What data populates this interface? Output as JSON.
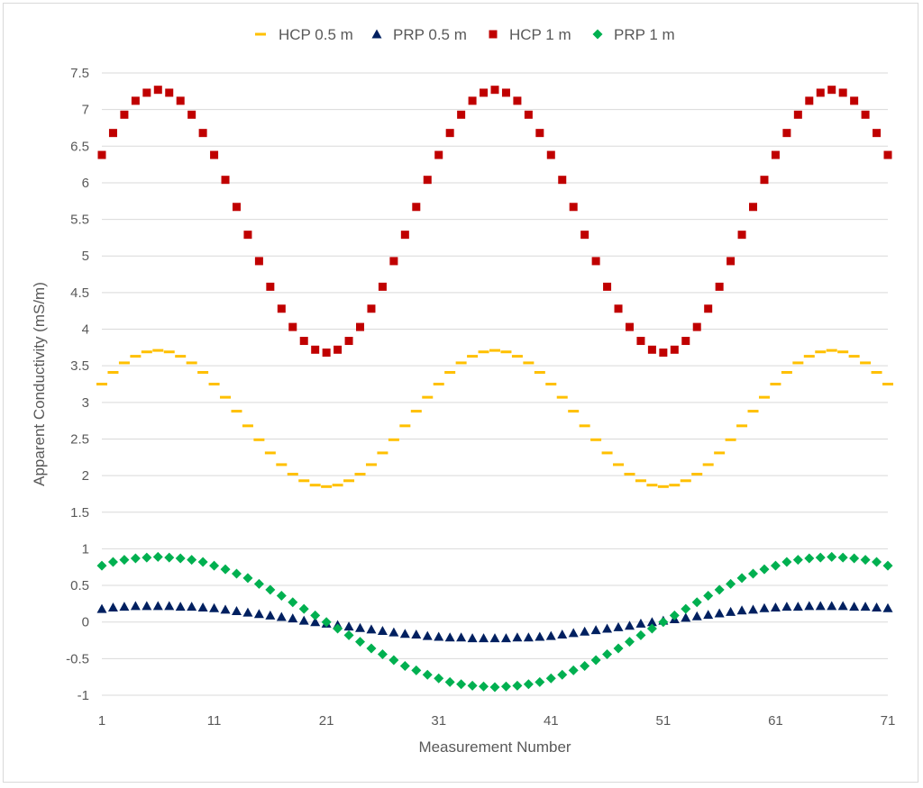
{
  "chart_data": {
    "type": "scatter",
    "title": "",
    "xlabel": "Measurement Number",
    "ylabel": "Apparent Conductivity (mS/m)",
    "xlim": [
      1,
      71
    ],
    "ylim": [
      -1,
      7.5
    ],
    "x_ticks": [
      1,
      11,
      21,
      31,
      41,
      51,
      61,
      71
    ],
    "x_tick_labels": [
      "1",
      "11",
      "21",
      "31",
      "41",
      "51",
      "61",
      "71"
    ],
    "y_ticks": [
      -1,
      -0.5,
      0,
      0.5,
      1,
      1.5,
      2,
      2.5,
      3,
      3.5,
      4,
      4.5,
      5,
      5.5,
      6,
      6.5,
      7,
      7.5
    ],
    "y_tick_labels": [
      "-1",
      "-0.5",
      "0",
      "0.5",
      "1",
      "1.5",
      "2",
      "2.5",
      "3",
      "3.5",
      "4",
      "4.5",
      "5",
      "5.5",
      "6",
      "6.5",
      "7",
      "7.5"
    ],
    "grid": "horizontal",
    "legend_position": "top",
    "x": [
      1,
      2,
      3,
      4,
      5,
      6,
      7,
      8,
      9,
      10,
      11,
      12,
      13,
      14,
      15,
      16,
      17,
      18,
      19,
      20,
      21,
      22,
      23,
      24,
      25,
      26,
      27,
      28,
      29,
      30,
      31,
      32,
      33,
      34,
      35,
      36,
      37,
      38,
      39,
      40,
      41,
      42,
      43,
      44,
      45,
      46,
      47,
      48,
      49,
      50,
      51,
      52,
      53,
      54,
      55,
      56,
      57,
      58,
      59,
      60,
      61,
      62,
      63,
      64,
      65,
      66,
      67,
      68,
      69,
      70,
      71
    ],
    "series": [
      {
        "name": "HCP 0.5 m",
        "marker": "dash",
        "color": "#ffc000",
        "values": [
          3.25,
          3.41,
          3.54,
          3.63,
          3.69,
          3.71,
          3.69,
          3.63,
          3.54,
          3.41,
          3.25,
          3.07,
          2.88,
          2.68,
          2.49,
          2.31,
          2.15,
          2.02,
          1.93,
          1.87,
          1.85,
          1.87,
          1.93,
          2.02,
          2.15,
          2.31,
          2.49,
          2.68,
          2.88,
          3.07,
          3.25,
          3.41,
          3.54,
          3.63,
          3.69,
          3.71,
          3.69,
          3.63,
          3.54,
          3.41,
          3.25,
          3.07,
          2.88,
          2.68,
          2.49,
          2.31,
          2.15,
          2.02,
          1.93,
          1.87,
          1.85,
          1.87,
          1.93,
          2.02,
          2.15,
          2.31,
          2.49,
          2.68,
          2.88,
          3.07,
          3.25,
          3.41,
          3.54,
          3.63,
          3.69,
          3.71,
          3.69,
          3.63,
          3.54,
          3.41,
          3.25
        ]
      },
      {
        "name": "PRP 0.5 m",
        "marker": "triangle",
        "color": "#002060",
        "values": [
          0.18,
          0.2,
          0.21,
          0.22,
          0.22,
          0.22,
          0.22,
          0.21,
          0.21,
          0.2,
          0.19,
          0.17,
          0.15,
          0.13,
          0.11,
          0.09,
          0.07,
          0.05,
          0.02,
          0.0,
          -0.02,
          -0.04,
          -0.06,
          -0.08,
          -0.1,
          -0.12,
          -0.14,
          -0.16,
          -0.17,
          -0.19,
          -0.2,
          -0.21,
          -0.21,
          -0.22,
          -0.22,
          -0.22,
          -0.22,
          -0.21,
          -0.21,
          -0.2,
          -0.19,
          -0.17,
          -0.15,
          -0.13,
          -0.11,
          -0.09,
          -0.07,
          -0.05,
          -0.02,
          0.0,
          0.02,
          0.04,
          0.06,
          0.08,
          0.1,
          0.12,
          0.14,
          0.16,
          0.17,
          0.19,
          0.2,
          0.21,
          0.21,
          0.22,
          0.22,
          0.22,
          0.22,
          0.21,
          0.21,
          0.2,
          0.19
        ]
      },
      {
        "name": "HCP 1 m",
        "marker": "square",
        "color": "#c00000",
        "values": [
          6.38,
          6.68,
          6.93,
          7.12,
          7.23,
          7.27,
          7.23,
          7.12,
          6.93,
          6.68,
          6.38,
          6.04,
          5.67,
          5.29,
          4.93,
          4.58,
          4.28,
          4.03,
          3.84,
          3.72,
          3.68,
          3.72,
          3.84,
          4.03,
          4.28,
          4.58,
          4.93,
          5.29,
          5.67,
          6.04,
          6.38,
          6.68,
          6.93,
          7.12,
          7.23,
          7.27,
          7.23,
          7.12,
          6.93,
          6.68,
          6.38,
          6.04,
          5.67,
          5.29,
          4.93,
          4.58,
          4.28,
          4.03,
          3.84,
          3.72,
          3.68,
          3.72,
          3.84,
          4.03,
          4.28,
          4.58,
          4.93,
          5.29,
          5.67,
          6.04,
          6.38,
          6.68,
          6.93,
          7.12,
          7.23,
          7.27,
          7.23,
          7.12,
          6.93,
          6.68,
          6.38
        ]
      },
      {
        "name": "PRP 1 m",
        "marker": "diamond",
        "color": "#00b050",
        "values": [
          0.77,
          0.82,
          0.85,
          0.87,
          0.88,
          0.89,
          0.88,
          0.87,
          0.85,
          0.82,
          0.77,
          0.72,
          0.66,
          0.6,
          0.52,
          0.44,
          0.36,
          0.27,
          0.18,
          0.09,
          0.0,
          -0.09,
          -0.18,
          -0.27,
          -0.36,
          -0.44,
          -0.52,
          -0.6,
          -0.66,
          -0.72,
          -0.77,
          -0.82,
          -0.85,
          -0.87,
          -0.88,
          -0.89,
          -0.88,
          -0.87,
          -0.85,
          -0.82,
          -0.77,
          -0.72,
          -0.66,
          -0.6,
          -0.52,
          -0.44,
          -0.36,
          -0.27,
          -0.18,
          -0.09,
          0.0,
          0.09,
          0.18,
          0.27,
          0.36,
          0.44,
          0.52,
          0.6,
          0.66,
          0.72,
          0.77,
          0.82,
          0.85,
          0.87,
          0.88,
          0.89,
          0.88,
          0.87,
          0.85,
          0.82,
          0.77
        ]
      }
    ]
  },
  "colors": {
    "gridline": "#d9d9d9",
    "axis_text": "#595959",
    "border": "#d9d9d9"
  }
}
